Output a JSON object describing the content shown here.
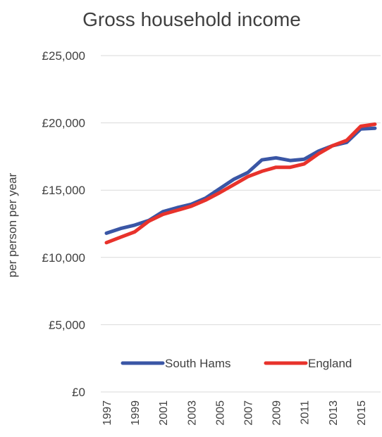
{
  "chart_data": {
    "type": "line",
    "title": "Gross household income",
    "xlabel": "",
    "ylabel": "per person per year",
    "x": [
      1997,
      1998,
      1999,
      2000,
      2001,
      2002,
      2003,
      2004,
      2005,
      2006,
      2007,
      2008,
      2009,
      2010,
      2011,
      2012,
      2013,
      2014,
      2015,
      2016
    ],
    "x_tick_labels": [
      "1997",
      "1999",
      "2001",
      "2003",
      "2005",
      "2007",
      "2009",
      "2011",
      "2013",
      "2015"
    ],
    "y_tick_labels": [
      "£0",
      "£5,000",
      "£10,000",
      "£15,000",
      "£20,000",
      "£25,000"
    ],
    "y_ticks": [
      0,
      5000,
      10000,
      15000,
      20000,
      25000
    ],
    "ylim": [
      0,
      25000
    ],
    "grid": true,
    "legend_position": "bottom",
    "series": [
      {
        "name": "South Hams",
        "color": "#3a56a5",
        "values": [
          11800,
          12150,
          12400,
          12750,
          13400,
          13700,
          13950,
          14400,
          15100,
          15800,
          16300,
          17250,
          17400,
          17200,
          17300,
          17900,
          18300,
          18550,
          19550,
          19600
        ]
      },
      {
        "name": "England",
        "color": "#e8322b",
        "values": [
          11100,
          11500,
          11900,
          12700,
          13200,
          13500,
          13800,
          14250,
          14800,
          15400,
          16000,
          16400,
          16700,
          16700,
          16950,
          17700,
          18300,
          18700,
          19750,
          19900
        ]
      }
    ]
  }
}
